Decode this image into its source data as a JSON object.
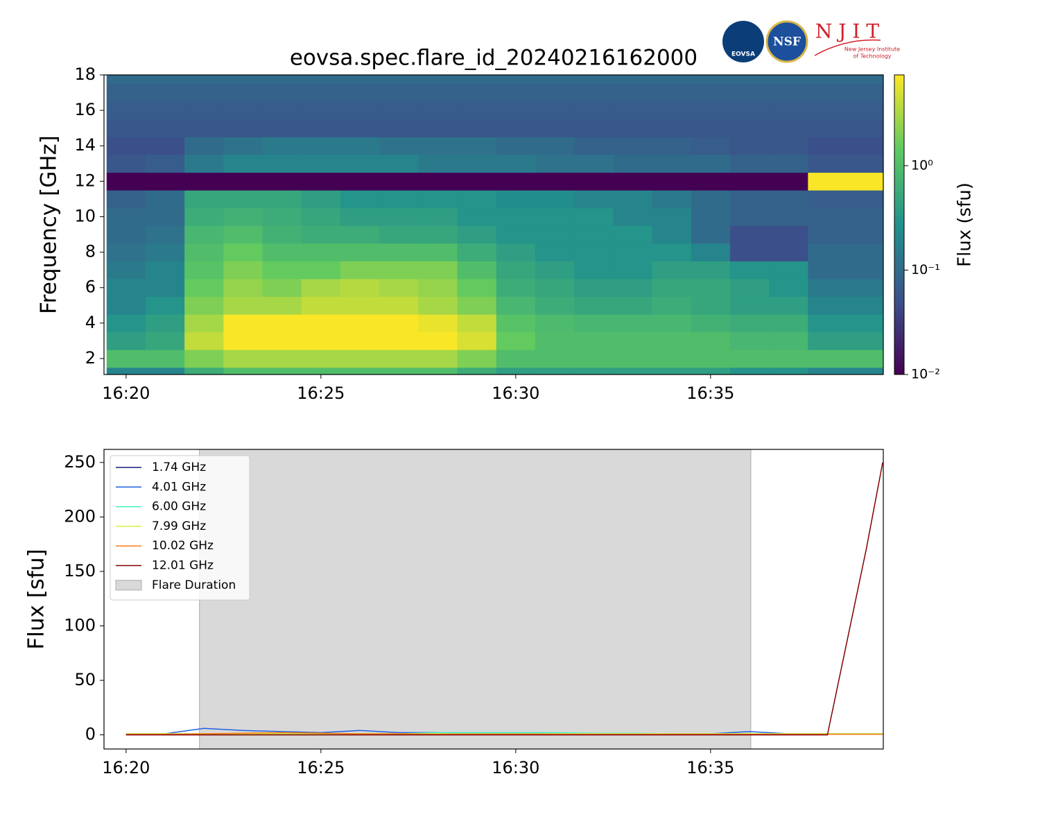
{
  "logos": {
    "eovsa": "EOVSA",
    "nsf": "NSF",
    "njit": "N J I T",
    "njit_sub": [
      "New Jersey Institute",
      "of Technology"
    ]
  },
  "chart_data": [
    {
      "type": "heatmap",
      "title": "eovsa.spec.flare_id_20240216162000",
      "ylabel": "Frequency [GHz]",
      "colormap": "viridis",
      "x": [
        "16:20",
        "16:21",
        "16:22",
        "16:23",
        "16:24",
        "16:25",
        "16:26",
        "16:27",
        "16:28",
        "16:29",
        "16:30",
        "16:31",
        "16:32",
        "16:33",
        "16:34",
        "16:35",
        "16:36",
        "16:37",
        "16:38",
        "16:39"
      ],
      "y": [
        1,
        2,
        3,
        4,
        5,
        6,
        7,
        8,
        9,
        10,
        11,
        12,
        13,
        14,
        15,
        16,
        17,
        18
      ],
      "z": [
        [
          0.2,
          0.2,
          0.6,
          1,
          1,
          1,
          1,
          1,
          1,
          0.6,
          0.4,
          0.4,
          0.4,
          0.4,
          0.4,
          0.4,
          0.3,
          0.3,
          0.2,
          0.2
        ],
        [
          1,
          1,
          2,
          3,
          3,
          3,
          3,
          3,
          3,
          2,
          1,
          1,
          1,
          1,
          1,
          1,
          1,
          1,
          1,
          1
        ],
        [
          0.4,
          0.5,
          4,
          7,
          7,
          7,
          7,
          7,
          7,
          5,
          1.5,
          1,
          1,
          1,
          1,
          1,
          0.8,
          0.8,
          0.4,
          0.4
        ],
        [
          0.3,
          0.4,
          3,
          7,
          7,
          7,
          7,
          7,
          6,
          4,
          1.2,
          0.9,
          0.8,
          0.8,
          0.8,
          0.7,
          0.6,
          0.6,
          0.3,
          0.3
        ],
        [
          0.2,
          0.3,
          2,
          3,
          3,
          4,
          4,
          4,
          3,
          2,
          0.8,
          0.6,
          0.5,
          0.5,
          0.6,
          0.5,
          0.4,
          0.4,
          0.2,
          0.2
        ],
        [
          0.2,
          0.2,
          1.5,
          2.5,
          2,
          3,
          3.5,
          3,
          2.5,
          1.5,
          0.6,
          0.5,
          0.4,
          0.4,
          0.5,
          0.5,
          0.4,
          0.3,
          0.15,
          0.15
        ],
        [
          0.15,
          0.2,
          1.2,
          2,
          1.5,
          1.5,
          2,
          2,
          2,
          1,
          0.5,
          0.4,
          0.3,
          0.3,
          0.4,
          0.4,
          0.3,
          0.3,
          0.1,
          0.1
        ],
        [
          0.12,
          0.15,
          1,
          1.5,
          1,
          1,
          1,
          1,
          1,
          0.6,
          0.4,
          0.3,
          0.3,
          0.3,
          0.3,
          0.2,
          0.05,
          0.05,
          0.1,
          0.1
        ],
        [
          0.1,
          0.12,
          0.8,
          1,
          0.7,
          0.6,
          0.6,
          0.5,
          0.5,
          0.4,
          0.3,
          0.3,
          0.3,
          0.3,
          0.2,
          0.1,
          0.05,
          0.05,
          0.08,
          0.08
        ],
        [
          0.1,
          0.1,
          0.6,
          0.7,
          0.6,
          0.5,
          0.4,
          0.4,
          0.4,
          0.3,
          0.3,
          0.3,
          0.3,
          0.2,
          0.2,
          0.1,
          0.08,
          0.08,
          0.08,
          0.08
        ],
        [
          0.08,
          0.1,
          0.5,
          0.5,
          0.5,
          0.4,
          0.3,
          0.3,
          0.3,
          0.3,
          0.25,
          0.25,
          0.2,
          0.2,
          0.15,
          0.1,
          0.08,
          0.08,
          0.07,
          0.07
        ],
        [
          0.01,
          0.01,
          0.01,
          0.01,
          0.01,
          0.01,
          0.01,
          0.01,
          0.01,
          0.01,
          0.01,
          0.01,
          0.01,
          0.01,
          0.01,
          0.01,
          0.01,
          0.01,
          7,
          7
        ],
        [
          0.06,
          0.07,
          0.15,
          0.2,
          0.2,
          0.2,
          0.2,
          0.2,
          0.15,
          0.15,
          0.15,
          0.12,
          0.12,
          0.1,
          0.1,
          0.1,
          0.08,
          0.08,
          0.06,
          0.06
        ],
        [
          0.05,
          0.05,
          0.1,
          0.12,
          0.15,
          0.15,
          0.15,
          0.12,
          0.12,
          0.12,
          0.1,
          0.1,
          0.08,
          0.08,
          0.08,
          0.07,
          0.06,
          0.06,
          0.05,
          0.05
        ],
        [
          0.06,
          0.06,
          0.06,
          0.06,
          0.06,
          0.06,
          0.06,
          0.06,
          0.06,
          0.06,
          0.06,
          0.06,
          0.06,
          0.06,
          0.06,
          0.06,
          0.06,
          0.06,
          0.06,
          0.06
        ],
        [
          0.07,
          0.07,
          0.07,
          0.07,
          0.07,
          0.07,
          0.07,
          0.07,
          0.07,
          0.07,
          0.07,
          0.07,
          0.07,
          0.07,
          0.07,
          0.07,
          0.07,
          0.07,
          0.07,
          0.07
        ],
        [
          0.08,
          0.08,
          0.08,
          0.08,
          0.08,
          0.08,
          0.08,
          0.08,
          0.08,
          0.08,
          0.08,
          0.08,
          0.08,
          0.08,
          0.08,
          0.08,
          0.08,
          0.08,
          0.08,
          0.08
        ],
        [
          0.1,
          0.1,
          0.1,
          0.1,
          0.1,
          0.1,
          0.1,
          0.1,
          0.1,
          0.1,
          0.1,
          0.1,
          0.1,
          0.1,
          0.1,
          0.1,
          0.1,
          0.1,
          0.1,
          0.1
        ]
      ],
      "xlim": [
        "16:19:26",
        "16:39:26"
      ],
      "ylim": [
        1.1,
        18
      ],
      "xticks": [
        "16:20",
        "16:25",
        "16:30",
        "16:35"
      ],
      "yticks": [
        2,
        4,
        6,
        8,
        10,
        12,
        14,
        16,
        18
      ],
      "colorbar": {
        "label": "Flux  (sfu)",
        "log": true,
        "clim": [
          0.01,
          7.4
        ],
        "ticks": [
          {
            "value": 0.01,
            "label": "10⁻²"
          },
          {
            "value": 0.1,
            "label": "10⁻¹"
          },
          {
            "value": 1,
            "label": "10⁰"
          }
        ]
      }
    },
    {
      "type": "line",
      "ylabel": "Flux [sfu]",
      "legend": "upper left",
      "x": [
        "16:20",
        "16:21",
        "16:22",
        "16:23",
        "16:24",
        "16:25",
        "16:26",
        "16:27",
        "16:28",
        "16:29",
        "16:30",
        "16:31",
        "16:32",
        "16:33",
        "16:34",
        "16:35",
        "16:36",
        "16:37",
        "16:38",
        "16:39",
        "16:39:25"
      ],
      "series": [
        {
          "name": "1.74 GHz",
          "color": "#1a1a80",
          "values": [
            0.5,
            0.5,
            0.5,
            0.5,
            0.5,
            0.5,
            0.5,
            0.5,
            0.5,
            0.5,
            0.5,
            0.5,
            0.5,
            0.5,
            0.5,
            0.5,
            0.5,
            0.5,
            0.5,
            0.5,
            0.5
          ]
        },
        {
          "name": "4.01 GHz",
          "color": "#1f5fe0",
          "values": [
            1,
            1,
            6,
            4,
            3,
            2,
            4,
            2,
            2,
            1.5,
            1.5,
            1,
            1,
            1,
            1,
            1,
            3,
            1,
            1,
            1,
            1
          ]
        },
        {
          "name": "6.00 GHz",
          "color": "#40f0c0",
          "values": [
            1,
            1,
            1,
            1,
            1,
            1,
            1,
            1,
            2,
            2,
            2,
            2,
            1.5,
            1.5,
            1,
            1,
            1,
            1,
            1,
            1,
            1
          ]
        },
        {
          "name": "7.99 GHz",
          "color": "#d8f040",
          "values": [
            1,
            1,
            1,
            1,
            1,
            1,
            1,
            1,
            1,
            1,
            1,
            1,
            1,
            1,
            1,
            1,
            1,
            1,
            1,
            1,
            1
          ]
        },
        {
          "name": "10.02 GHz",
          "color": "#ff7a10",
          "values": [
            0.5,
            0.5,
            1,
            1.5,
            2,
            1.5,
            1,
            1,
            0.5,
            0.5,
            0.5,
            0.5,
            0.5,
            0.5,
            0.5,
            0.5,
            0.5,
            0.5,
            0.5,
            0.5,
            0.5
          ]
        },
        {
          "name": "12.01 GHz",
          "color": "#800000",
          "values": [
            0,
            0,
            0,
            0,
            0,
            0,
            0,
            0,
            0,
            0,
            0,
            0,
            0,
            0,
            0,
            0,
            0,
            0,
            0,
            171,
            250
          ]
        }
      ],
      "span": {
        "name": "Flare Duration",
        "x": [
          "16:21:53",
          "16:36:02"
        ],
        "color": "#d9d9d9"
      },
      "xlim": [
        "16:19:26",
        "16:39:26"
      ],
      "ylim": [
        -13,
        262
      ],
      "xticks": [
        "16:20",
        "16:25",
        "16:30",
        "16:35"
      ],
      "yticks": [
        0,
        50,
        100,
        150,
        200,
        250
      ]
    }
  ]
}
